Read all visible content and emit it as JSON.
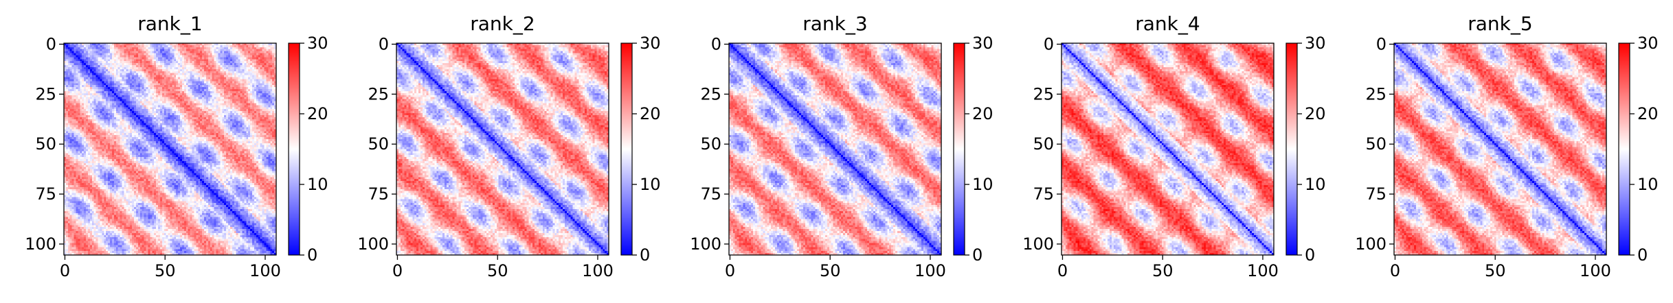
{
  "chart_data": [
    {
      "type": "heatmap",
      "title": "rank_1",
      "matrix_size": 106,
      "xticks": [
        0,
        50,
        100
      ],
      "yticks": [
        0,
        25,
        50,
        75,
        100
      ],
      "colorbar": {
        "min": 0,
        "max": 30,
        "ticks": [
          0,
          10,
          20,
          30
        ],
        "colormap": "bwr"
      }
    },
    {
      "type": "heatmap",
      "title": "rank_2",
      "matrix_size": 106,
      "xticks": [
        0,
        50,
        100
      ],
      "yticks": [
        0,
        25,
        50,
        75,
        100
      ],
      "colorbar": {
        "min": 0,
        "max": 30,
        "ticks": [
          0,
          10,
          20,
          30
        ],
        "colormap": "bwr"
      }
    },
    {
      "type": "heatmap",
      "title": "rank_3",
      "matrix_size": 106,
      "xticks": [
        0,
        50,
        100
      ],
      "yticks": [
        0,
        25,
        50,
        75,
        100
      ],
      "colorbar": {
        "min": 0,
        "max": 30,
        "ticks": [
          0,
          10,
          20,
          30
        ],
        "colormap": "bwr"
      }
    },
    {
      "type": "heatmap",
      "title": "rank_4",
      "matrix_size": 106,
      "xticks": [
        0,
        50,
        100
      ],
      "yticks": [
        0,
        25,
        50,
        75,
        100
      ],
      "colorbar": {
        "min": 0,
        "max": 30,
        "ticks": [
          0,
          10,
          20,
          30
        ],
        "colormap": "bwr"
      }
    },
    {
      "type": "heatmap",
      "title": "rank_5",
      "matrix_size": 106,
      "xticks": [
        0,
        50,
        100
      ],
      "yticks": [
        0,
        25,
        50,
        75,
        100
      ],
      "colorbar": {
        "min": 0,
        "max": 30,
        "ticks": [
          0,
          10,
          20,
          30
        ],
        "colormap": "bwr"
      }
    }
  ],
  "colors": {
    "low": "#0000ff",
    "mid": "#ffffff",
    "high": "#ff0000"
  }
}
